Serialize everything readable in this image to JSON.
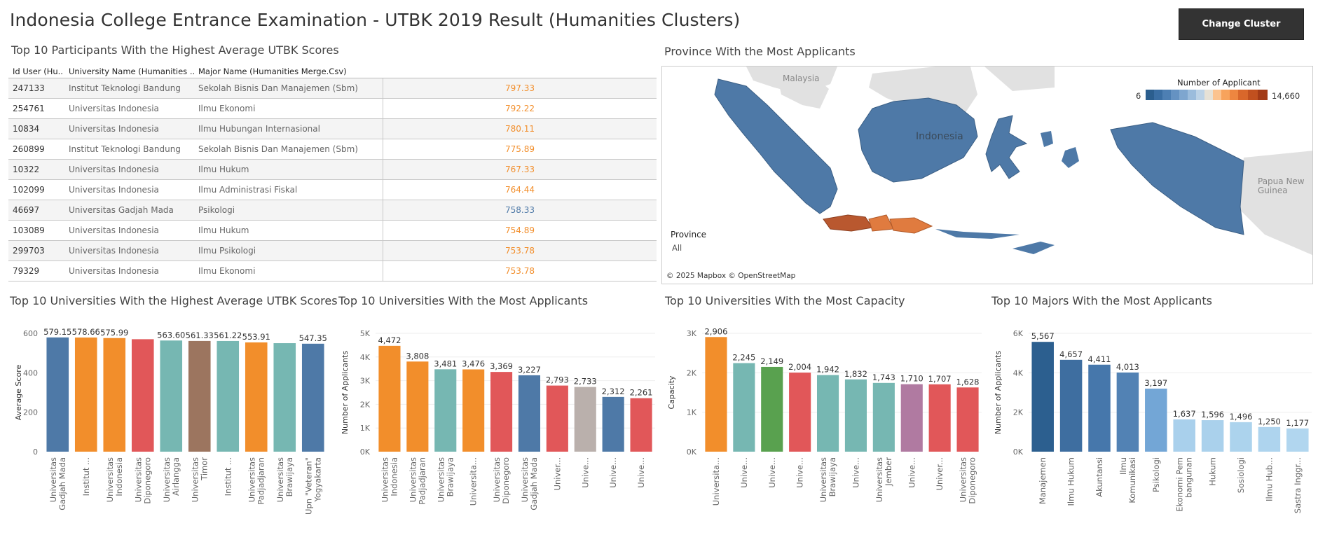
{
  "dashboard": {
    "title": "Indonesia College Entrance Examination - UTBK 2019 Result (Humanities Clusters)",
    "change_button": "Change Cluster"
  },
  "sections": {
    "participants": "Top 10 Participants With the Highest Average UTBK Scores",
    "province": "Province With the Most Applicants",
    "uni_scores": "Top 10 Universities With the Highest Average UTBK Scores",
    "uni_applicants": "Top 10 Universities With the Most Applicants",
    "uni_capacity": "Top 10 Universities With the Most Capacity",
    "majors": "Top 10 Majors With the Most Applicants"
  },
  "table": {
    "headers": {
      "id": "Id User (Hu..",
      "uni": "University Name (Humanities ..",
      "major": "Major Name (Humanities Merge.Csv)"
    },
    "rows": [
      {
        "id": "247133",
        "uni": "Institut Teknologi Bandung",
        "major": "Sekolah Bisnis Dan Manajemen (Sbm)",
        "score": "797.33",
        "color": "#f28e2b"
      },
      {
        "id": "254761",
        "uni": "Universitas Indonesia",
        "major": "Ilmu Ekonomi",
        "score": "792.22",
        "color": "#f28e2b"
      },
      {
        "id": "10834",
        "uni": "Universitas Indonesia",
        "major": "Ilmu Hubungan Internasional",
        "score": "780.11",
        "color": "#f28e2b"
      },
      {
        "id": "260899",
        "uni": "Institut Teknologi Bandung",
        "major": "Sekolah Bisnis Dan Manajemen (Sbm)",
        "score": "775.89",
        "color": "#f28e2b"
      },
      {
        "id": "10322",
        "uni": "Universitas Indonesia",
        "major": "Ilmu Hukum",
        "score": "767.33",
        "color": "#f28e2b"
      },
      {
        "id": "102099",
        "uni": "Universitas Indonesia",
        "major": "Ilmu Administrasi Fiskal",
        "score": "764.44",
        "color": "#f28e2b"
      },
      {
        "id": "46697",
        "uni": "Universitas Gadjah Mada",
        "major": "Psikologi",
        "score": "758.33",
        "color": "#4e79a7"
      },
      {
        "id": "103089",
        "uni": "Universitas Indonesia",
        "major": "Ilmu Hukum",
        "score": "754.89",
        "color": "#f28e2b"
      },
      {
        "id": "299703",
        "uni": "Universitas Indonesia",
        "major": "Ilmu Psikologi",
        "score": "753.78",
        "color": "#f28e2b"
      },
      {
        "id": "79329",
        "uni": "Universitas Indonesia",
        "major": "Ilmu Ekonomi",
        "score": "753.78",
        "color": "#f28e2b"
      }
    ]
  },
  "map": {
    "labels": {
      "malaysia": "Malaysia",
      "indonesia": "Indonesia",
      "png": "Papua New Guinea"
    },
    "legend_title": "Number of Applicant",
    "legend_min": "6",
    "legend_max": "14,660",
    "province_label": "Province",
    "province_value": "All",
    "attribution": "© 2025 Mapbox © OpenStreetMap"
  },
  "chart_data": [
    {
      "type": "bar",
      "title": "Top 10 Universities With the Highest Average UTBK Scores",
      "ylabel": "Average Score",
      "ylim": [
        0,
        600
      ],
      "yticks": [
        0,
        200,
        400,
        600
      ],
      "ytick_labels": [
        "0",
        "200",
        "400",
        "600"
      ],
      "categories": [
        [
          "Universitas",
          "Gadjah Mada"
        ],
        [
          "Institut ..."
        ],
        [
          "Universitas",
          "Indonesia"
        ],
        [
          "Universitas",
          "Diponegoro"
        ],
        [
          "Universitas",
          "Airlangga"
        ],
        [
          "Universitas",
          "Timor"
        ],
        [
          "Institut ..."
        ],
        [
          "Universitas",
          "Padjadjaran"
        ],
        [
          "Universitas",
          "Brawijaya"
        ],
        [
          "Upn \"Veteran\"",
          "Yogyakarta"
        ]
      ],
      "values": [
        579.15,
        578.66,
        575.99,
        570.2,
        563.6,
        561.33,
        561.22,
        553.91,
        550.1,
        547.35
      ],
      "labels": [
        "579.15",
        "578.66",
        "575.99",
        "",
        "563.60",
        "561.33",
        "561.22",
        "553.91",
        "",
        "547.35"
      ],
      "colors": [
        "#4e79a7",
        "#f28e2b",
        "#f28e2b",
        "#e15759",
        "#76b7b2",
        "#9c755f",
        "#76b7b2",
        "#f28e2b",
        "#76b7b2",
        "#4e79a7"
      ]
    },
    {
      "type": "bar",
      "title": "Top 10 Universities With the Most Applicants",
      "ylabel": "Number of Applicants",
      "ylim": [
        0,
        5000
      ],
      "yticks": [
        0,
        1000,
        2000,
        3000,
        4000,
        5000
      ],
      "ytick_labels": [
        "0K",
        "1K",
        "2K",
        "3K",
        "4K",
        "5K"
      ],
      "categories": [
        [
          "Universitas",
          "Indonesia"
        ],
        [
          "Universitas",
          "Padjadjaran"
        ],
        [
          "Universitas",
          "Brawijaya"
        ],
        [
          "Universita..."
        ],
        [
          "Universitas",
          "Diponegoro"
        ],
        [
          "Universitas",
          "Gadjah Mada"
        ],
        [
          "Univer..."
        ],
        [
          "Unive..."
        ],
        [
          "Unive..."
        ],
        [
          "Unive..."
        ]
      ],
      "values": [
        4472,
        3808,
        3481,
        3476,
        3369,
        3227,
        2793,
        2733,
        2312,
        2261
      ],
      "labels": [
        "4,472",
        "3,808",
        "3,481",
        "3,476",
        "3,369",
        "3,227",
        "2,793",
        "2,733",
        "2,312",
        "2,261"
      ],
      "colors": [
        "#f28e2b",
        "#f28e2b",
        "#76b7b2",
        "#f28e2b",
        "#e15759",
        "#4e79a7",
        "#e15759",
        "#bab0ac",
        "#4e79a7",
        "#e15759"
      ]
    },
    {
      "type": "bar",
      "title": "Top 10 Universities With the Most Capacity",
      "ylabel": "Capacity",
      "ylim": [
        0,
        3000
      ],
      "yticks": [
        0,
        1000,
        2000,
        3000
      ],
      "ytick_labels": [
        "0K",
        "1K",
        "2K",
        "3K"
      ],
      "categories": [
        [
          "Universita..."
        ],
        [
          "Unive..."
        ],
        [
          "Unive..."
        ],
        [
          "Unive..."
        ],
        [
          "Universitas",
          "Brawijaya"
        ],
        [
          "Unive..."
        ],
        [
          "Universitas",
          "Jember"
        ],
        [
          "Unive..."
        ],
        [
          "Univer..."
        ],
        [
          "Universitas",
          "Diponegoro"
        ]
      ],
      "values": [
        2906,
        2245,
        2149,
        2004,
        1942,
        1832,
        1743,
        1710,
        1707,
        1628
      ],
      "labels": [
        "2,906",
        "2,245",
        "2,149",
        "2,004",
        "1,942",
        "1,832",
        "1,743",
        "1,710",
        "1,707",
        "1,628"
      ],
      "colors": [
        "#f28e2b",
        "#76b7b2",
        "#59a14f",
        "#e15759",
        "#76b7b2",
        "#76b7b2",
        "#76b7b2",
        "#b07aa1",
        "#e15759",
        "#e15759"
      ]
    },
    {
      "type": "bar",
      "title": "Top 10 Majors With the Most Applicants",
      "ylabel": "Number of Applicants",
      "ylim": [
        0,
        6000
      ],
      "yticks": [
        0,
        2000,
        4000,
        6000
      ],
      "ytick_labels": [
        "0K",
        "2K",
        "4K",
        "6K"
      ],
      "categories": [
        [
          "Manajemen"
        ],
        [
          "Ilmu Hukum"
        ],
        [
          "Akuntansi"
        ],
        [
          "Ilmu",
          "Komunikasi"
        ],
        [
          "Psikologi"
        ],
        [
          "Ekonomi Pem",
          "bangunan"
        ],
        [
          "Hukum"
        ],
        [
          "Sosiologi"
        ],
        [
          "Ilmu Hub..."
        ],
        [
          "Sastra Inggr..."
        ]
      ],
      "values": [
        5567,
        4657,
        4411,
        4013,
        3197,
        1637,
        1596,
        1496,
        1250,
        1177
      ],
      "labels": [
        "5,567",
        "4,657",
        "4,411",
        "4,013",
        "3,197",
        "1,637",
        "1,596",
        "1,496",
        "1,250",
        "1,177"
      ],
      "colors": [
        "#2c5f8f",
        "#3e6ea0",
        "#4677ab",
        "#5282b4",
        "#73a6d6",
        "#a9d0ec",
        "#aad1ec",
        "#acd3ed",
        "#aed4ee",
        "#b1d6ef"
      ]
    }
  ]
}
